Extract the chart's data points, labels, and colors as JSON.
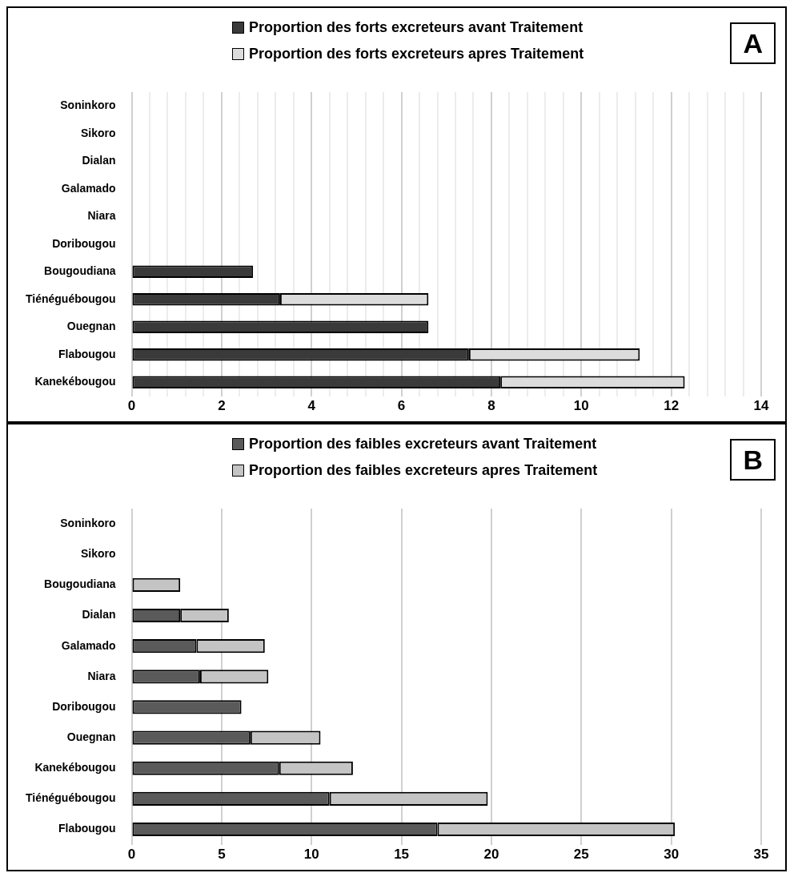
{
  "chart_data": [
    {
      "type": "bar",
      "orientation": "horizontal",
      "stacked": true,
      "legend": "top",
      "grid": "x",
      "annotations": [
        "A"
      ],
      "categories": [
        "Soninkoro",
        "Sikoro",
        "Dialan",
        "Galamado",
        "Niara",
        "Doribougou",
        "Bougoudiana",
        "Tiénéguébougou",
        "Ouegnan",
        "Flabougou",
        "Kanekébougou"
      ],
      "series": [
        {
          "name": "Proportion des forts excreteurs avant Traitement",
          "color": "#3a3a3a",
          "values": [
            0,
            0,
            0,
            0,
            0,
            0,
            2.7,
            3.3,
            6.6,
            7.5,
            8.2
          ]
        },
        {
          "name": "Proportion des forts excreteurs apres Traitement",
          "color": "#dcdcdc",
          "values": [
            0,
            0,
            0,
            0,
            0,
            0,
            0,
            3.3,
            0,
            3.8,
            4.1
          ]
        }
      ],
      "xlim": [
        0,
        14
      ],
      "xticks": [
        0,
        {
          "value": 0.4,
          "label": null
        },
        {
          "value": 0.8,
          "label": null
        },
        {
          "value": 1.2,
          "label": null
        },
        {
          "value": 1.6,
          "label": null
        },
        2,
        {
          "value": 2.4,
          "label": null
        },
        {
          "value": 2.8,
          "label": null
        },
        {
          "value": 3.2,
          "label": null
        },
        {
          "value": 3.6,
          "label": null
        },
        4,
        {
          "value": 4.4,
          "label": null
        },
        {
          "value": 4.8,
          "label": null
        },
        {
          "value": 5.2,
          "label": null
        },
        {
          "value": 5.6,
          "label": null
        },
        6,
        {
          "value": 6.4,
          "label": null
        },
        {
          "value": 6.8,
          "label": null
        },
        {
          "value": 7.2,
          "label": null
        },
        {
          "value": 7.6,
          "label": null
        },
        8,
        {
          "value": 8.4,
          "label": null
        },
        {
          "value": 8.8,
          "label": null
        },
        {
          "value": 9.2,
          "label": null
        },
        {
          "value": 9.6,
          "label": null
        },
        10,
        {
          "value": 10.4,
          "label": null
        },
        {
          "value": 10.8,
          "label": null
        },
        {
          "value": 11.2,
          "label": null
        },
        {
          "value": 11.6,
          "label": null
        },
        12,
        {
          "value": 12.4,
          "label": null
        },
        {
          "value": 12.8,
          "label": null
        },
        {
          "value": 13.2,
          "label": null
        },
        {
          "value": 13.6,
          "label": null
        },
        14
      ]
    },
    {
      "type": "bar",
      "orientation": "horizontal",
      "stacked": true,
      "legend": "top",
      "grid": "x",
      "annotations": [
        "B"
      ],
      "categories": [
        "Soninkoro",
        "Sikoro",
        "Bougoudiana",
        "Dialan",
        "Galamado",
        "Niara",
        "Doribougou",
        "Ouegnan",
        "Kanekébougou",
        "Tiénéguébougou",
        "Flabougou"
      ],
      "series": [
        {
          "name": "Proportion des faibles excreteurs avant Traitement",
          "color": "#5a5a5a",
          "values": [
            0,
            0,
            0,
            2.7,
            3.6,
            3.8,
            6.1,
            6.6,
            8.2,
            11.0,
            17.0
          ]
        },
        {
          "name": "Proportion des faibles excreteurs apres Traitement",
          "color": "#c4c4c4",
          "values": [
            0,
            0,
            2.7,
            2.7,
            3.8,
            3.8,
            0,
            3.9,
            4.1,
            8.8,
            13.2
          ]
        }
      ],
      "xlim": [
        0,
        35
      ],
      "xticks": [
        0,
        5,
        10,
        15,
        20,
        25,
        30,
        35
      ]
    }
  ]
}
